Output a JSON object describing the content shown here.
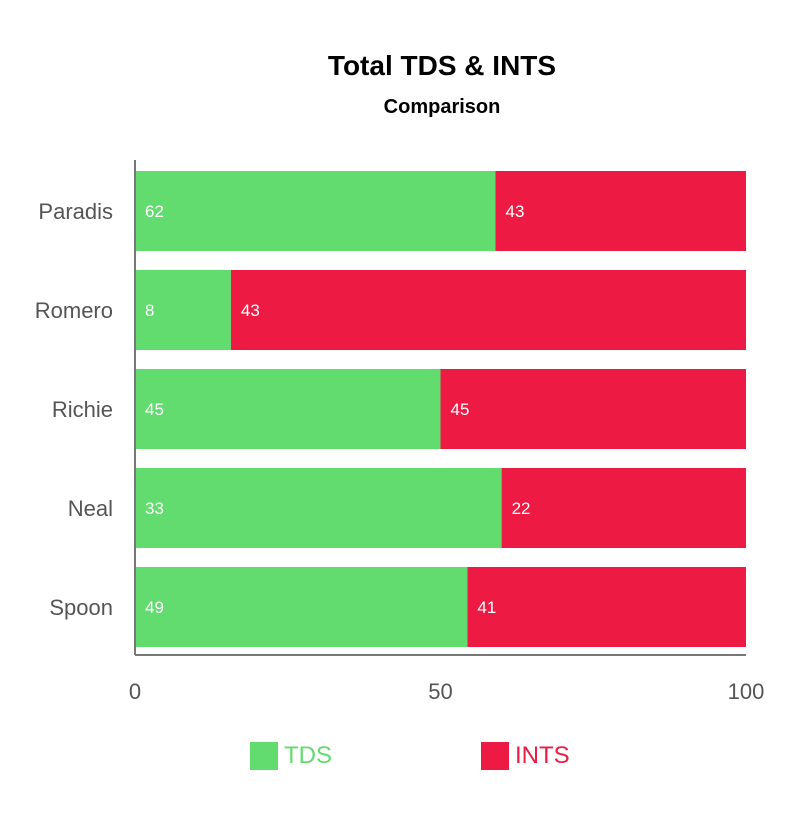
{
  "chart_data": {
    "type": "bar",
    "orientation": "horizontal",
    "stacked": true,
    "title": "Total TDS & INTS",
    "subtitle": "Comparison",
    "categories": [
      "Paradis",
      "Romero",
      "Richie",
      "Neal",
      "Spoon"
    ],
    "series": [
      {
        "name": "TDS",
        "color": "#62DB6F",
        "values": [
          62,
          8,
          45,
          33,
          49
        ],
        "percent_of_bar": [
          59.0,
          15.7,
          50.0,
          60.0,
          54.4
        ]
      },
      {
        "name": "INTS",
        "color": "#ED1B44",
        "values": [
          43,
          43,
          45,
          22,
          41
        ],
        "percent_of_bar": [
          41.0,
          84.3,
          50.0,
          40.0,
          45.6
        ]
      }
    ],
    "xlim": [
      0,
      100
    ],
    "x_ticks": [
      "0",
      "50",
      "100"
    ],
    "grid": false,
    "legend_position": "bottom"
  }
}
